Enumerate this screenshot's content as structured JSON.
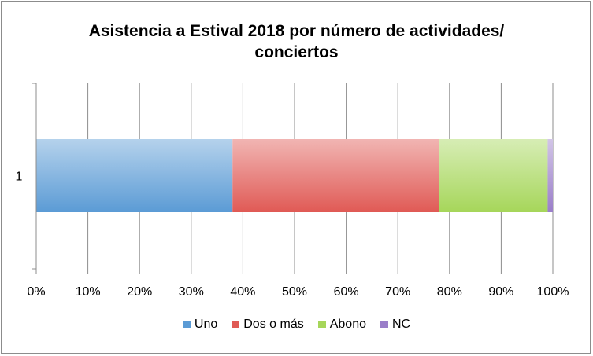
{
  "chart_data": {
    "type": "bar",
    "orientation": "horizontal",
    "stacked": "percent",
    "title": "Asistencia a Estival 2018 por número de actividades/\nconciertos",
    "categories": [
      "1"
    ],
    "series": [
      {
        "name": "Uno",
        "values": [
          38
        ],
        "color": "#5b9bd5"
      },
      {
        "name": "Dos o más",
        "values": [
          40
        ],
        "color": "#e05a55"
      },
      {
        "name": "Abono",
        "values": [
          21
        ],
        "color": "#a6d65a"
      },
      {
        "name": "NC",
        "values": [
          1
        ],
        "color": "#9a7ec9"
      }
    ],
    "xlim": [
      0,
      100
    ],
    "x_ticks": [
      "0%",
      "10%",
      "20%",
      "30%",
      "40%",
      "50%",
      "60%",
      "70%",
      "80%",
      "90%",
      "100%"
    ],
    "grid": true,
    "legend": "bottom"
  }
}
